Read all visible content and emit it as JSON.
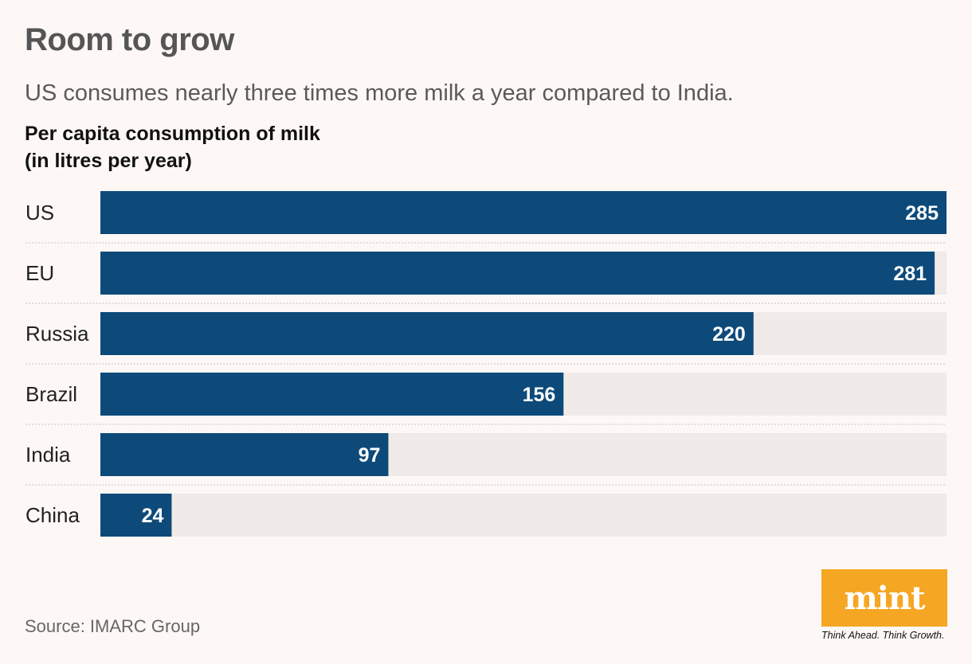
{
  "header": {
    "title": "Room to grow",
    "subtitle": "US consumes nearly three times more milk a year compared to India.",
    "chart_heading_line1": "Per capita consumption of milk",
    "chart_heading_line2": "(in litres per year)"
  },
  "chart_data": {
    "type": "bar",
    "orientation": "horizontal",
    "title": "Per capita consumption of milk (in litres per year)",
    "categories": [
      "US",
      "EU",
      "Russia",
      "Brazil",
      "India",
      "China"
    ],
    "values": [
      285,
      281,
      220,
      156,
      97,
      24
    ],
    "xlim": [
      0,
      285
    ],
    "xlabel": "",
    "ylabel": "",
    "grid": false,
    "bar_color": "#0d4a7a",
    "track_color": "#f0ebe9"
  },
  "footer": {
    "source": "Source: IMARC Group",
    "logo_text": "mint",
    "logo_tagline": "Think Ahead. Think Growth."
  },
  "colors": {
    "background": "#fdf8f6",
    "bar": "#0d4a7a",
    "logo": "#f5a623"
  }
}
